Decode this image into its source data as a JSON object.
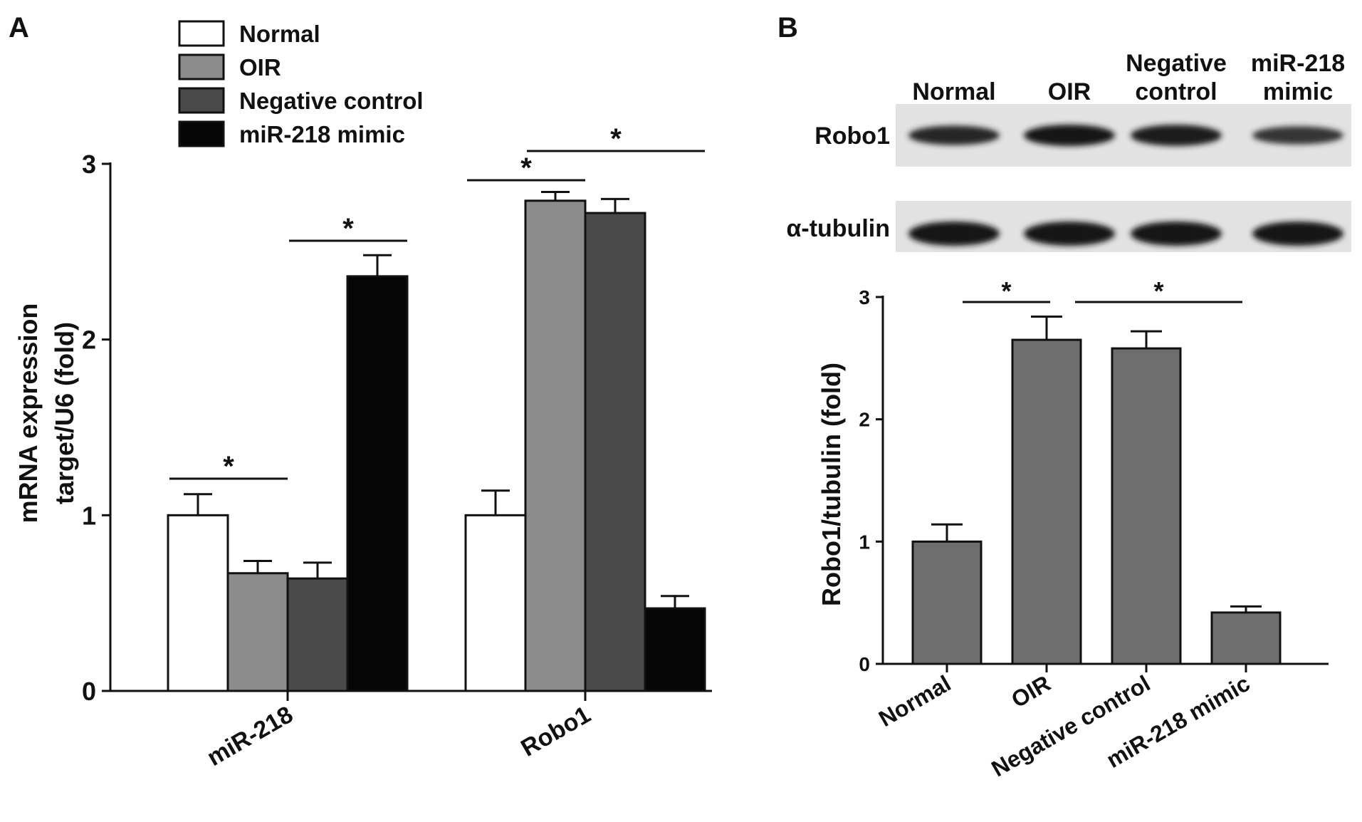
{
  "panels": {
    "a_label": "A",
    "b_label": "B"
  },
  "legend": [
    {
      "label": "Normal",
      "color": "#ffffff"
    },
    {
      "label": "OIR",
      "color": "#8c8c8c"
    },
    {
      "label": "Negative control",
      "color": "#4a4a4a"
    },
    {
      "label": " miR-218 mimic",
      "color": "#050505"
    }
  ],
  "significance_mark": "*",
  "chart_data": [
    {
      "panel": "A",
      "type": "bar",
      "title": "",
      "xlabel": "",
      "ylabel": "mRNA expression",
      "ylabel2": "target/U6 (fold)",
      "categories": [
        "miR-218",
        "Robo1"
      ],
      "ylim": [
        0,
        3
      ],
      "yticks": [
        "0",
        "1",
        "2",
        "3"
      ],
      "series": [
        {
          "name": "Normal",
          "values": [
            1.0,
            1.0
          ],
          "errors": [
            0.12,
            0.14
          ],
          "color": "#ffffff"
        },
        {
          "name": "OIR",
          "values": [
            0.67,
            2.79
          ],
          "errors": [
            0.07,
            0.05
          ],
          "color": "#8c8c8c"
        },
        {
          "name": "Negative control",
          "values": [
            0.64,
            2.72
          ],
          "errors": [
            0.09,
            0.08
          ],
          "color": "#4a4a4a"
        },
        {
          "name": "miR-218 mimic",
          "values": [
            2.36,
            0.47
          ],
          "errors": [
            0.12,
            0.07
          ],
          "color": "#050505"
        }
      ],
      "significance": [
        {
          "category": 0,
          "from": 0,
          "to": 1,
          "mark": "*"
        },
        {
          "category": 0,
          "from": 2,
          "to": 3,
          "mark": "*"
        },
        {
          "category": 1,
          "from": 0,
          "to": 1,
          "mark": "*"
        },
        {
          "category": 1,
          "from": 1,
          "to": 3,
          "mark": "*"
        }
      ]
    },
    {
      "panel": "B",
      "type": "bar",
      "title": "",
      "xlabel": "",
      "ylabel": "Robo1/tubulin (fold)",
      "categories": [
        "Normal",
        "OIR",
        "Negative control",
        "miR-218 mimic"
      ],
      "ylim": [
        0,
        3
      ],
      "yticks": [
        "0",
        "1",
        "2",
        "3"
      ],
      "series": [
        {
          "name": "",
          "values": [
            1.0,
            2.65,
            2.58,
            0.42
          ],
          "errors": [
            0.14,
            0.19,
            0.14,
            0.05
          ],
          "color": "#6e6e6e"
        }
      ],
      "significance": [
        {
          "from": 0,
          "to": 1,
          "mark": "*"
        },
        {
          "from": 1,
          "to": 3,
          "mark": "*"
        }
      ]
    }
  ],
  "western_blot": {
    "lane_labels": [
      "Normal",
      "OIR",
      "Negative control",
      "miR-218 mimic"
    ],
    "lane_label_lines": [
      [
        "Normal"
      ],
      [
        "OIR"
      ],
      [
        "Negative",
        "control"
      ],
      [
        "miR-218",
        "mimic"
      ]
    ],
    "rows": [
      {
        "label": "Robo1",
        "intensity": [
          0.78,
          1.0,
          0.98,
          0.62
        ]
      },
      {
        "label": "α-tubulin",
        "intensity": [
          1.0,
          1.0,
          1.0,
          1.0
        ]
      }
    ]
  }
}
